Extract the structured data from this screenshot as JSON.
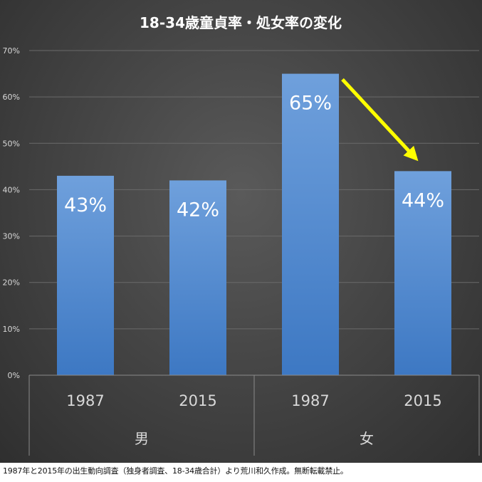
{
  "chart_data": {
    "type": "bar",
    "title": "18-34歳童貞率・処女率の変化",
    "categories": [
      "1987",
      "2015",
      "1987",
      "2015"
    ],
    "groups": [
      {
        "label": "男",
        "categories": [
          "1987",
          "2015"
        ]
      },
      {
        "label": "女",
        "categories": [
          "1987",
          "2015"
        ]
      }
    ],
    "values": [
      43,
      42,
      65,
      44
    ],
    "data_labels": [
      "43%",
      "42%",
      "65%",
      "44%"
    ],
    "ylim": [
      0,
      70
    ],
    "yticks": [
      0,
      10,
      20,
      30,
      40,
      50,
      60,
      70
    ],
    "ytick_labels": [
      "0%",
      "10%",
      "20%",
      "30%",
      "40%",
      "50%",
      "60%",
      "70%"
    ],
    "grid": true,
    "legend": "none",
    "annotation": {
      "type": "arrow",
      "from_category_index": 2,
      "to_category_index": 3,
      "color": "#ffff00"
    },
    "colors": {
      "bar_top": "#6fa0dc",
      "bar_bottom": "#3d78c3",
      "grid": "#6a6a6a",
      "axis_text": "#d9d9d9",
      "title": "#ffffff"
    }
  },
  "source": "1987年と2015年の出生動向調査（独身者調査、18-34歳合計）より荒川和久作成。無断転載禁止。"
}
